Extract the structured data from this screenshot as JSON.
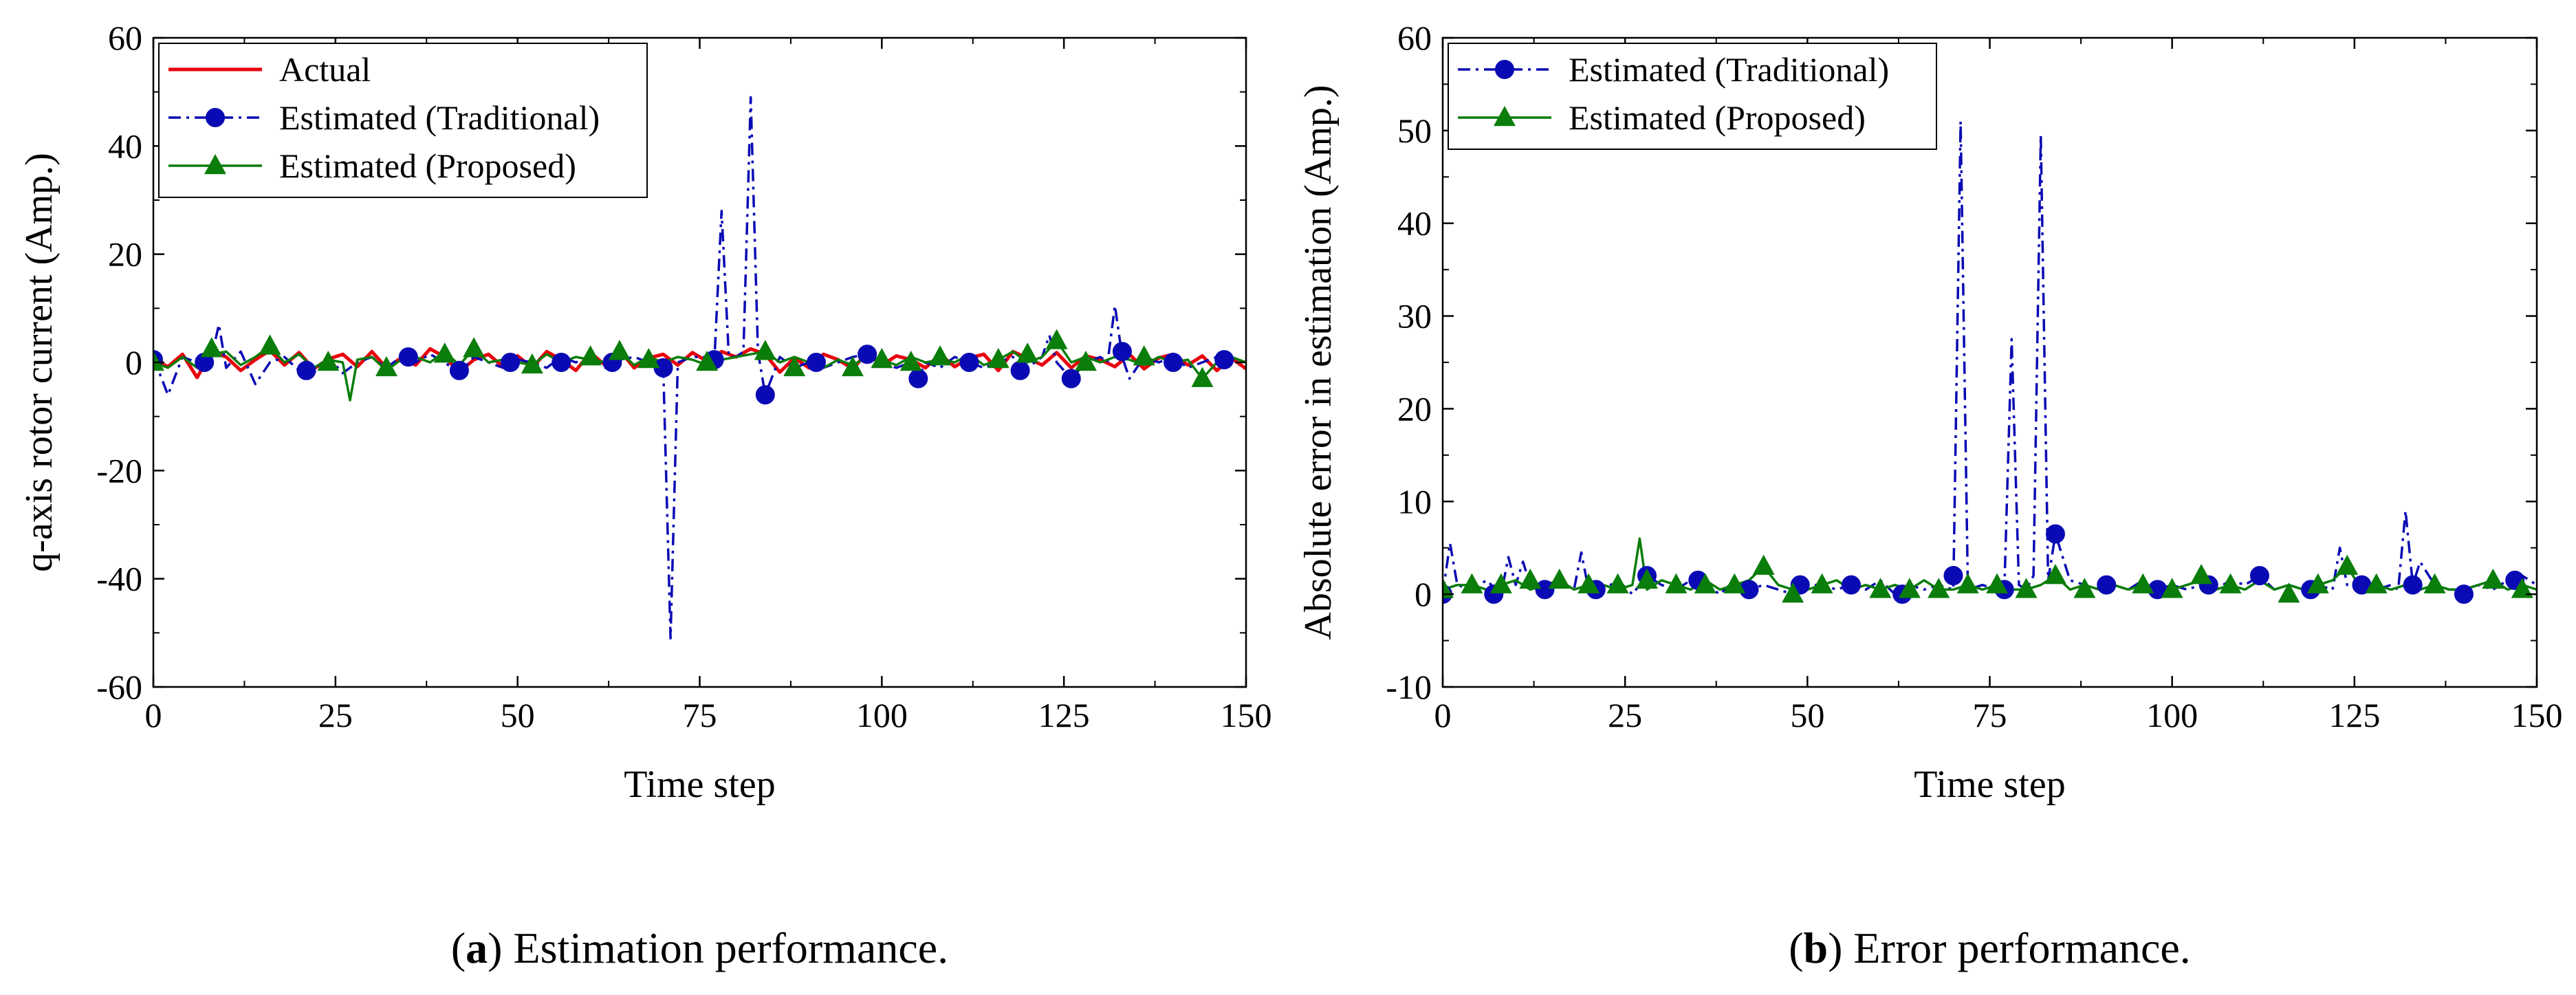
{
  "chart_data": [
    {
      "id": "a",
      "type": "line",
      "caption": {
        "letter": "a",
        "text": " Estimation performance."
      },
      "title": "",
      "xlabel": "Time step",
      "ylabel": "q-axis rotor current (Amp.)",
      "xlim": [
        0,
        150
      ],
      "ylim": [
        -60,
        60
      ],
      "xticks": [
        0,
        25,
        50,
        75,
        100,
        125,
        150
      ],
      "yticks": [
        -60,
        -40,
        -20,
        0,
        20,
        40,
        60
      ],
      "grid": false,
      "legend_position": "top-left",
      "series": [
        {
          "name": "Actual",
          "color": "#e8000b",
          "style": "solid",
          "marker": "none",
          "x": [
            0,
            2,
            4,
            6,
            8,
            10,
            12,
            14,
            16,
            18,
            20,
            22,
            24,
            26,
            28,
            30,
            32,
            34,
            36,
            38,
            40,
            42,
            44,
            46,
            48,
            50,
            52,
            54,
            56,
            58,
            60,
            62,
            64,
            66,
            68,
            70,
            72,
            74,
            76,
            78,
            80,
            82,
            84,
            86,
            88,
            90,
            92,
            94,
            96,
            98,
            100,
            102,
            104,
            106,
            108,
            110,
            112,
            114,
            116,
            118,
            120,
            122,
            124,
            126,
            128,
            130,
            132,
            134,
            136,
            138,
            140,
            142,
            144,
            146,
            148,
            150
          ],
          "y": [
            0.5,
            -0.8,
            1.5,
            -2.8,
            2.0,
            1.0,
            -1.5,
            0.5,
            2.2,
            -0.5,
            1.8,
            -1.2,
            0.6,
            1.5,
            -0.8,
            2.0,
            -1.0,
            0.8,
            -0.5,
            2.5,
            1.0,
            -1.8,
            0.5,
            1.5,
            -0.8,
            1.2,
            -1.0,
            2.0,
            0.5,
            -1.5,
            1.8,
            -0.5,
            2.2,
            -1.0,
            0.8,
            1.5,
            -0.5,
            1.8,
            0.2,
            2.0,
            1.0,
            2.5,
            1.5,
            -1.8,
            0.8,
            -1.0,
            1.5,
            0.5,
            -1.2,
            1.8,
            -0.5,
            1.2,
            0.5,
            -1.0,
            1.5,
            -0.8,
            0.8,
            1.5,
            -1.5,
            2.0,
            0.8,
            -0.5,
            1.8,
            -1.0,
            1.2,
            0.5,
            -0.8,
            1.5,
            -1.2,
            0.8,
            1.5,
            -0.5,
            1.2,
            -1.5,
            0.8,
            -1.2
          ]
        },
        {
          "name": "Estimated (Traditional)",
          "color": "#0a0ab4",
          "style": "dashdot",
          "marker": "circle",
          "x": [
            0,
            2,
            4,
            6,
            8,
            9,
            10,
            12,
            14,
            16,
            18,
            20,
            22,
            24,
            26,
            28,
            30,
            32,
            34,
            36,
            38,
            40,
            42,
            44,
            46,
            48,
            50,
            52,
            54,
            56,
            58,
            60,
            62,
            64,
            66,
            68,
            70,
            71,
            72,
            74,
            76,
            77,
            78,
            79,
            80,
            81,
            82,
            83,
            84,
            86,
            88,
            90,
            92,
            94,
            96,
            98,
            100,
            102,
            104,
            105,
            106,
            108,
            110,
            112,
            114,
            116,
            118,
            120,
            122,
            123,
            124,
            126,
            128,
            130,
            131,
            132,
            133,
            134,
            136,
            138,
            140,
            142,
            144,
            146,
            148,
            150
          ],
          "y": [
            1.0,
            -6.0,
            1.0,
            0.0,
            1.0,
            7.0,
            -1.0,
            2.0,
            -4.0,
            0.0,
            1.0,
            -1.5,
            -2.0,
            1.0,
            -2.0,
            0.0,
            1.0,
            -1.0,
            1.0,
            0.0,
            1.5,
            0.0,
            -2.0,
            1.0,
            0.0,
            -1.0,
            0.5,
            0.0,
            -1.0,
            1.0,
            0.0,
            1.0,
            -1.0,
            0.5,
            1.0,
            0.0,
            -1.0,
            -51.0,
            0.0,
            1.0,
            1.0,
            0.0,
            28.0,
            1.0,
            1.0,
            2.0,
            49.0,
            2.0,
            -6.0,
            1.0,
            -1.0,
            0.0,
            -1.0,
            0.0,
            1.0,
            1.5,
            0.0,
            -1.0,
            0.0,
            -3.0,
            0.0,
            -1.0,
            1.0,
            0.0,
            -1.0,
            0.0,
            1.0,
            -1.0,
            1.0,
            5.0,
            0.0,
            -3.0,
            0.0,
            1.0,
            0.0,
            10.5,
            1.0,
            -3.0,
            1.0,
            0.0,
            1.0,
            -1.0,
            0.0,
            1.0,
            0.5,
            0.0
          ],
          "marker_x": [
            0,
            7,
            21,
            35,
            42,
            49,
            56,
            63,
            70,
            77,
            84,
            91,
            98,
            105,
            112,
            119,
            126,
            133,
            140,
            147
          ],
          "marker_y": [
            0.5,
            0.0,
            -1.5,
            1.0,
            -1.5,
            0.0,
            0.0,
            0.0,
            -1.0,
            0.5,
            -6.0,
            0.0,
            1.5,
            -3.0,
            0.0,
            -1.5,
            -3.0,
            2.0,
            0.0,
            0.5
          ]
        },
        {
          "name": "Estimated (Proposed)",
          "color": "#0a7d0a",
          "style": "solid",
          "marker": "triangle",
          "x": [
            0,
            2,
            4,
            6,
            8,
            10,
            12,
            14,
            16,
            18,
            20,
            22,
            24,
            26,
            27,
            28,
            30,
            32,
            34,
            36,
            38,
            40,
            42,
            44,
            46,
            48,
            50,
            52,
            54,
            56,
            58,
            60,
            62,
            64,
            66,
            68,
            70,
            72,
            74,
            76,
            78,
            80,
            82,
            84,
            86,
            88,
            90,
            92,
            94,
            96,
            98,
            100,
            102,
            104,
            106,
            108,
            110,
            112,
            114,
            116,
            118,
            120,
            122,
            124,
            126,
            128,
            130,
            132,
            134,
            136,
            138,
            140,
            142,
            144,
            146,
            148,
            150
          ],
          "y": [
            0.0,
            -1.0,
            1.0,
            -1.0,
            1.5,
            2.0,
            -0.5,
            1.0,
            3.0,
            0.0,
            1.5,
            -1.0,
            0.5,
            0.0,
            -7.0,
            0.5,
            1.0,
            -1.5,
            0.5,
            1.0,
            0.0,
            2.0,
            -0.5,
            2.5,
            0.0,
            0.5,
            0.0,
            -0.5,
            1.5,
            0.0,
            1.0,
            0.5,
            0.0,
            2.0,
            -0.5,
            1.0,
            0.0,
            1.0,
            0.5,
            -0.5,
            0.5,
            1.0,
            1.5,
            2.0,
            0.0,
            1.0,
            0.0,
            -1.0,
            0.5,
            -0.5,
            1.0,
            0.5,
            -0.5,
            1.0,
            0.0,
            0.5,
            0.0,
            1.5,
            -0.5,
            0.5,
            2.0,
            0.0,
            1.0,
            4.0,
            0.0,
            1.0,
            0.0,
            1.0,
            0.5,
            -0.5,
            1.0,
            0.0,
            0.5,
            -3.0,
            0.0,
            1.0,
            0.0
          ],
          "marker_x": [
            0,
            8,
            16,
            24,
            32,
            40,
            44,
            52,
            60,
            64,
            68,
            76,
            84,
            88,
            96,
            100,
            104,
            108,
            116,
            120,
            124,
            128,
            136,
            144
          ],
          "marker_y": [
            0.0,
            2.5,
            3.0,
            0.0,
            -1.0,
            1.5,
            2.5,
            -0.5,
            1.0,
            2.0,
            0.5,
            0.0,
            2.0,
            -1.0,
            -1.0,
            0.5,
            0.0,
            1.0,
            0.5,
            1.5,
            4.0,
            0.0,
            1.0,
            -3.0
          ]
        }
      ]
    },
    {
      "id": "b",
      "type": "line",
      "caption": {
        "letter": "b",
        "text": " Error performance."
      },
      "title": "",
      "xlabel": "Time step",
      "ylabel": "Absolute error in estimation (Amp.)",
      "xlim": [
        0,
        150
      ],
      "ylim": [
        -10,
        60
      ],
      "xticks": [
        0,
        25,
        50,
        75,
        100,
        125,
        150
      ],
      "yticks": [
        -10,
        0,
        10,
        20,
        30,
        40,
        50,
        60
      ],
      "grid": false,
      "legend_position": "top-left",
      "series": [
        {
          "name": "Estimated (Traditional)",
          "color": "#0a0ab4",
          "style": "dashdot",
          "marker": "circle",
          "x": [
            0,
            1,
            2,
            4,
            6,
            8,
            9,
            10,
            11,
            12,
            14,
            16,
            18,
            19,
            20,
            22,
            24,
            26,
            28,
            30,
            32,
            34,
            36,
            38,
            40,
            42,
            44,
            46,
            48,
            50,
            52,
            54,
            56,
            58,
            60,
            62,
            64,
            66,
            68,
            70,
            71,
            72,
            74,
            76,
            77,
            78,
            79,
            80,
            81,
            82,
            83,
            84,
            86,
            88,
            90,
            92,
            94,
            96,
            98,
            100,
            102,
            104,
            106,
            108,
            110,
            112,
            114,
            116,
            118,
            120,
            122,
            123,
            124,
            126,
            128,
            130,
            131,
            132,
            133,
            134,
            136,
            138,
            140,
            142,
            144,
            146,
            148,
            150
          ],
          "y": [
            0.0,
            5.5,
            1.0,
            0.5,
            1.5,
            0.0,
            4.0,
            1.0,
            3.5,
            1.0,
            0.5,
            1.5,
            0.5,
            4.5,
            0.5,
            0.5,
            1.5,
            0.0,
            2.0,
            1.0,
            0.5,
            1.5,
            1.0,
            0.0,
            1.5,
            0.5,
            1.0,
            0.5,
            0.0,
            1.0,
            1.0,
            0.5,
            1.0,
            0.5,
            1.5,
            0.0,
            1.0,
            0.5,
            1.0,
            0.5,
            51.0,
            0.5,
            1.0,
            0.5,
            0.5,
            27.5,
            1.0,
            0.5,
            2.0,
            49.5,
            1.5,
            6.5,
            1.5,
            1.0,
            0.5,
            1.0,
            0.5,
            1.5,
            0.5,
            1.0,
            0.5,
            1.0,
            0.5,
            1.5,
            1.0,
            2.0,
            0.5,
            1.0,
            0.5,
            1.0,
            0.5,
            5.0,
            1.0,
            1.0,
            0.5,
            1.0,
            0.5,
            9.0,
            1.0,
            3.5,
            1.0,
            0.5,
            0.5,
            1.0,
            0.5,
            1.5,
            2.0,
            1.0
          ],
          "marker_x": [
            0,
            7,
            14,
            21,
            28,
            35,
            42,
            49,
            56,
            63,
            70,
            77,
            84,
            91,
            98,
            105,
            112,
            119,
            126,
            133,
            140,
            147
          ],
          "marker_y": [
            0.0,
            0.0,
            0.5,
            0.5,
            2.0,
            1.5,
            0.5,
            1.0,
            1.0,
            0.0,
            2.0,
            0.5,
            6.5,
            1.0,
            0.5,
            1.0,
            2.0,
            0.5,
            1.0,
            1.0,
            0.0,
            1.5
          ]
        },
        {
          "name": "Estimated (Proposed)",
          "color": "#0a7d0a",
          "style": "solid",
          "marker": "triangle",
          "x": [
            0,
            2,
            4,
            6,
            8,
            10,
            12,
            14,
            16,
            18,
            20,
            22,
            24,
            26,
            27,
            28,
            30,
            32,
            34,
            36,
            38,
            40,
            42,
            44,
            46,
            48,
            50,
            52,
            54,
            56,
            58,
            60,
            62,
            64,
            66,
            68,
            70,
            72,
            74,
            76,
            78,
            80,
            82,
            84,
            86,
            88,
            90,
            92,
            94,
            96,
            98,
            100,
            102,
            104,
            106,
            108,
            110,
            112,
            114,
            116,
            118,
            120,
            122,
            124,
            126,
            128,
            130,
            132,
            134,
            136,
            138,
            140,
            142,
            144,
            146,
            148,
            150
          ],
          "y": [
            0.5,
            1.0,
            1.0,
            0.5,
            1.0,
            1.5,
            0.5,
            1.0,
            1.5,
            0.5,
            1.0,
            1.0,
            0.5,
            1.0,
            6.0,
            0.5,
            1.5,
            1.0,
            0.5,
            1.5,
            0.5,
            1.0,
            1.5,
            3.0,
            1.0,
            0.5,
            0.5,
            1.0,
            1.5,
            0.5,
            1.0,
            0.5,
            1.0,
            0.5,
            1.5,
            0.5,
            0.5,
            1.0,
            0.5,
            1.0,
            0.5,
            0.5,
            1.0,
            2.0,
            0.5,
            1.0,
            0.5,
            1.0,
            0.5,
            1.0,
            0.5,
            0.5,
            1.0,
            1.5,
            0.5,
            1.0,
            0.5,
            1.5,
            0.5,
            1.0,
            0.5,
            1.0,
            1.5,
            3.0,
            0.5,
            1.0,
            0.5,
            1.0,
            0.5,
            1.0,
            0.5,
            0.5,
            1.0,
            1.5,
            0.5,
            1.0,
            0.5
          ],
          "marker_x": [
            0,
            4,
            8,
            12,
            16,
            20,
            24,
            28,
            32,
            36,
            40,
            44,
            48,
            52,
            60,
            64,
            68,
            72,
            76,
            80,
            84,
            88,
            96,
            100,
            104,
            108,
            116,
            120,
            124,
            128,
            136,
            144,
            148
          ],
          "marker_y": [
            0.5,
            1.0,
            1.0,
            1.5,
            1.5,
            1.0,
            1.0,
            1.5,
            1.0,
            1.0,
            1.0,
            3.0,
            0.0,
            1.0,
            0.5,
            0.5,
            0.5,
            1.0,
            1.0,
            0.5,
            2.0,
            0.5,
            1.0,
            0.5,
            2.0,
            1.0,
            0.0,
            1.0,
            3.0,
            1.0,
            1.0,
            1.5,
            0.5
          ]
        }
      ]
    }
  ]
}
